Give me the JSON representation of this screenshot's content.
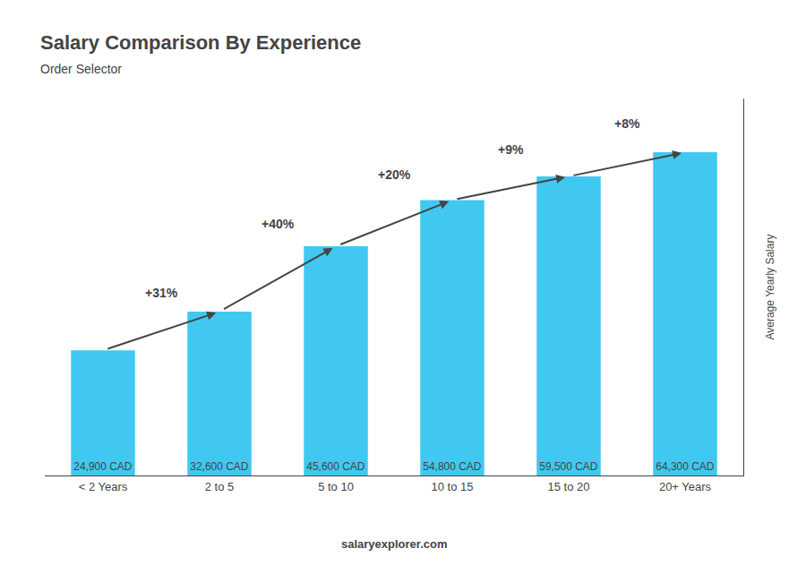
{
  "chart_data": {
    "type": "bar",
    "title": "Salary Comparison By Experience",
    "subtitle": "Order Selector",
    "categories": [
      "< 2 Years",
      "2 to 5",
      "5 to 10",
      "10 to 15",
      "15 to 20",
      "20+ Years"
    ],
    "values": [
      24900,
      32600,
      45600,
      54800,
      59500,
      64300
    ],
    "value_labels": [
      "24,900 CAD",
      "32,600 CAD",
      "45,600 CAD",
      "54,800 CAD",
      "59,500 CAD",
      "64,300 CAD"
    ],
    "data_labels": true,
    "color": "#40c8f0",
    "ylabel": "Average Yearly Salary",
    "annotations": [
      "+31%",
      "+40%",
      "+20%",
      "+9%",
      "+8%"
    ],
    "footer": "salaryexplorer.com",
    "ylim": [
      0,
      75000
    ],
    "tick_labels": "x",
    "grid": false
  }
}
